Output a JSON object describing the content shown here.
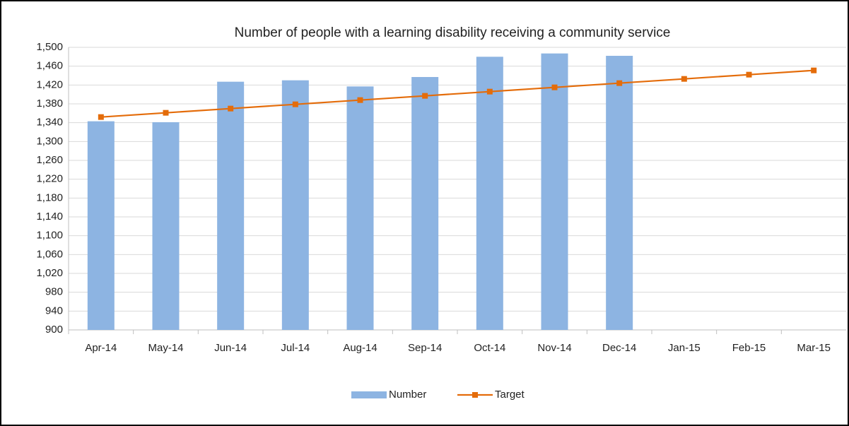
{
  "chart_data": {
    "type": "bar-line",
    "title": "Number of people with a learning disability receiving a community service",
    "categories": [
      "Apr-14",
      "May-14",
      "Jun-14",
      "Jul-14",
      "Aug-14",
      "Sep-14",
      "Oct-14",
      "Nov-14",
      "Dec-14",
      "Jan-15",
      "Feb-15",
      "Mar-15"
    ],
    "series": [
      {
        "name": "Number",
        "type": "bar",
        "color": "#8db4e2",
        "values": [
          1343,
          1341,
          1427,
          1430,
          1417,
          1437,
          1480,
          1487,
          1482,
          null,
          null,
          null
        ]
      },
      {
        "name": "Target",
        "type": "line",
        "color": "#e46c0a",
        "values": [
          1352,
          1361,
          1370,
          1379,
          1388,
          1397,
          1406,
          1415,
          1424,
          1433,
          1442,
          1451
        ]
      }
    ],
    "ylim": [
      900,
      1500
    ],
    "yticks": [
      900,
      940,
      980,
      {
        "value": 1020,
        "label": "1,020"
      },
      {
        "value": 1060,
        "label": "1,060"
      },
      {
        "value": 1100,
        "label": "1,100"
      },
      {
        "value": 1140,
        "label": "1,140"
      },
      {
        "value": 1180,
        "label": "1,180"
      },
      {
        "value": 1220,
        "label": "1,220"
      },
      {
        "value": 1260,
        "label": "1,260"
      },
      {
        "value": 1300,
        "label": "1,300"
      },
      {
        "value": 1340,
        "label": "1,340"
      },
      {
        "value": 1380,
        "label": "1,380"
      },
      {
        "value": 1420,
        "label": "1,420"
      },
      {
        "value": 1460,
        "label": "1,460"
      },
      {
        "value": 1500,
        "label": "1,500"
      }
    ],
    "grid": true,
    "legend": "bottom"
  }
}
